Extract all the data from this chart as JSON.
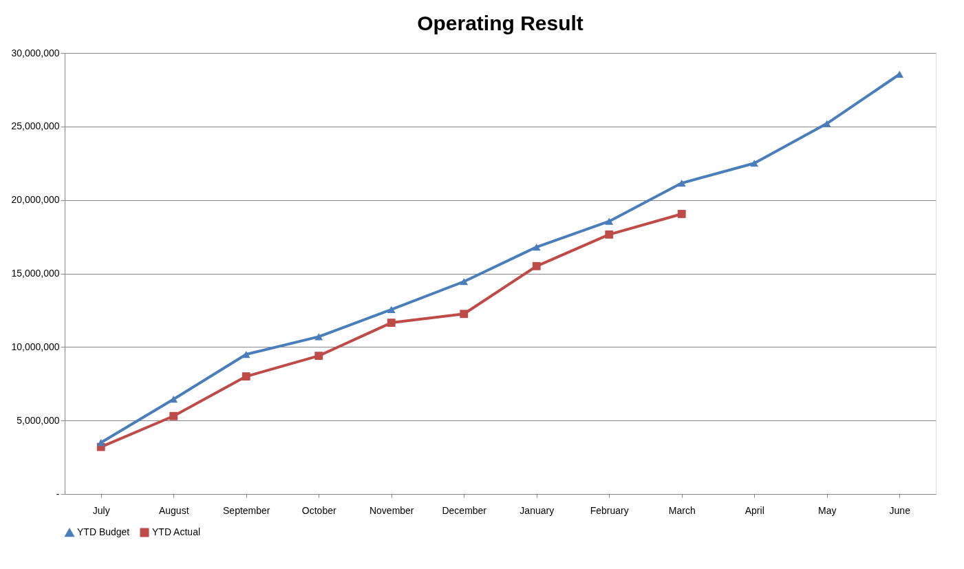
{
  "chart_data": {
    "type": "line",
    "title": "Operating Result",
    "categories": [
      "July",
      "August",
      "September",
      "October",
      "November",
      "December",
      "January",
      "February",
      "March",
      "April",
      "May",
      "June"
    ],
    "series": [
      {
        "name": "YTD Budget",
        "color": "#4a7ebb",
        "marker": "triangle",
        "values": [
          3500000,
          6450000,
          9500000,
          10700000,
          12550000,
          14450000,
          16800000,
          18550000,
          21150000,
          22500000,
          25200000,
          28550000
        ]
      },
      {
        "name": "YTD Actual",
        "color": "#be4b48",
        "marker": "square",
        "values": [
          3200000,
          5300000,
          8000000,
          9400000,
          11650000,
          12250000,
          15500000,
          17650000,
          19050000,
          null,
          null,
          null
        ]
      }
    ],
    "ylim": [
      0,
      30000000
    ],
    "yticks": [
      {
        "value": 0,
        "label": "-"
      },
      {
        "value": 5000000,
        "label": "5,000,000"
      },
      {
        "value": 10000000,
        "label": "10,000,000"
      },
      {
        "value": 15000000,
        "label": "15,000,000"
      },
      {
        "value": 20000000,
        "label": "20,000,000"
      },
      {
        "value": 25000000,
        "label": "25,000,000"
      },
      {
        "value": 30000000,
        "label": "30,000,000"
      }
    ],
    "grid": "y",
    "legend": "bottom",
    "line_style": "solid"
  }
}
